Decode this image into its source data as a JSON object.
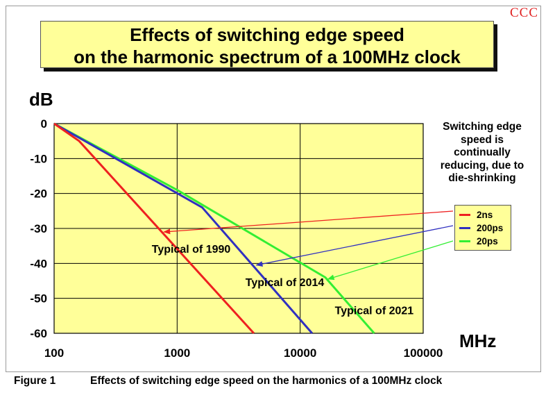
{
  "watermark": "CCC",
  "title_lines": [
    "Effects of switching edge speed",
    "on the harmonic spectrum of a 100MHz clock"
  ],
  "caption": {
    "label": "Figure 1",
    "text": "Effects of switching edge speed on the harmonics of a 100MHz clock"
  },
  "note_lines": [
    "Switching edge",
    "speed is",
    "continually",
    "reducing, due to",
    "die-shrinking"
  ],
  "colors": {
    "plot_bg": "#ffff99",
    "2ns": "#ee2020",
    "200ps": "#3030c0",
    "20ps": "#33ee33"
  },
  "chart_data": {
    "type": "line",
    "xlabel": "MHz",
    "ylabel": "dB",
    "xscale": "log",
    "xlim": [
      100,
      100000
    ],
    "ylim": [
      -60,
      0
    ],
    "xticks": [
      100,
      1000,
      10000,
      100000
    ],
    "xtick_labels": [
      "100",
      "1000",
      "10000",
      "100000"
    ],
    "yticks": [
      0,
      -10,
      -20,
      -30,
      -40,
      -50,
      -60
    ],
    "ytick_labels": [
      "0",
      "-10",
      "-20",
      "-30",
      "-40",
      "-50",
      "-60"
    ],
    "grid": true,
    "legend_position": "right",
    "series": [
      {
        "name": "2ns",
        "color_key": "2ns",
        "points": [
          [
            100,
            0
          ],
          [
            160,
            -5
          ],
          [
            4200,
            -60
          ]
        ]
      },
      {
        "name": "200ps",
        "color_key": "200ps",
        "points": [
          [
            100,
            0
          ],
          [
            1600,
            -24
          ],
          [
            12500,
            -60
          ]
        ]
      },
      {
        "name": "20ps",
        "color_key": "20ps",
        "points": [
          [
            100,
            0
          ],
          [
            1000,
            -19
          ],
          [
            16000,
            -44
          ],
          [
            40000,
            -60
          ]
        ]
      }
    ],
    "annotations": [
      {
        "text": "Typical of 1990",
        "x": 1300,
        "y": -37,
        "series": "2ns",
        "arrow_to": [
          780,
          -31
        ]
      },
      {
        "text": "Typical of 2014",
        "x": 7500,
        "y": -46.5,
        "series": "200ps",
        "arrow_to": [
          4400,
          -40.5
        ]
      },
      {
        "text": "Typical of 2021",
        "x": 40000,
        "y": -54.5,
        "series": "20ps",
        "arrow_to": [
          16800,
          -44.5
        ]
      }
    ]
  }
}
